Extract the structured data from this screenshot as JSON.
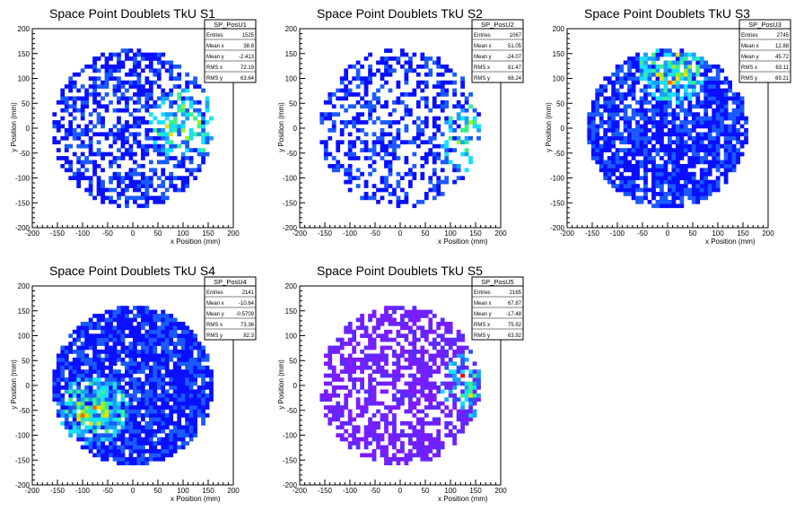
{
  "chart_data": [
    {
      "type": "heatmap",
      "title": "Space Point Doublets TkU S1",
      "xlabel": "x Position (mm)",
      "ylabel": "y Position (mm)",
      "xlim": [
        -200,
        200
      ],
      "ylim": [
        -200,
        200
      ],
      "xticks": [
        "-200",
        "-150",
        "-100",
        "-50",
        "0",
        "50",
        "100",
        "150",
        "200"
      ],
      "yticks": [
        "-200",
        "-150",
        "-100",
        "-50",
        "0",
        "50",
        "100",
        "150",
        "200"
      ],
      "stats": {
        "name": "SP_PosU1",
        "rows": [
          [
            "Entries",
            "1525"
          ],
          [
            "Mean x",
            "38.8"
          ],
          [
            "Mean y",
            "-2.413"
          ],
          [
            "RMS x",
            "72.19"
          ],
          [
            "RMS y",
            "63.64"
          ]
        ]
      },
      "hotspot": {
        "x": 100,
        "y": 10
      },
      "fill_fraction": 0.55,
      "seed": 11
    },
    {
      "type": "heatmap",
      "title": "Space Point Doublets TkU S2",
      "xlabel": "x Position (mm)",
      "ylabel": "y Position (mm)",
      "xlim": [
        -200,
        200
      ],
      "ylim": [
        -200,
        200
      ],
      "xticks": [
        "-200",
        "-150",
        "-100",
        "-50",
        "0",
        "50",
        "100",
        "150",
        "200"
      ],
      "yticks": [
        "-200",
        "-150",
        "-100",
        "-50",
        "0",
        "50",
        "100",
        "150",
        "200"
      ],
      "stats": {
        "name": "SP_PosU2",
        "rows": [
          [
            "Entries",
            "1067"
          ],
          [
            "Mean x",
            "51.05"
          ],
          [
            "Mean y",
            "-24.07"
          ],
          [
            "RMS x",
            "81.47"
          ],
          [
            "RMS y",
            "68.24"
          ]
        ]
      },
      "hotspot": {
        "x": 150,
        "y": -20
      },
      "fill_fraction": 0.42,
      "seed": 23
    },
    {
      "type": "heatmap",
      "title": "Space Point Doublets TkU S3",
      "xlabel": "x Position (mm)",
      "ylabel": "y Position (mm)",
      "xlim": [
        -200,
        200
      ],
      "ylim": [
        -200,
        200
      ],
      "xticks": [
        "-200",
        "-150",
        "-100",
        "-50",
        "0",
        "50",
        "100",
        "150",
        "200"
      ],
      "yticks": [
        "-200",
        "-150",
        "-100",
        "-50",
        "0",
        "50",
        "100",
        "150",
        "200"
      ],
      "stats": {
        "name": "SP_PosU3",
        "rows": [
          [
            "Entries",
            "2745"
          ],
          [
            "Mean x",
            "12.88"
          ],
          [
            "Mean y",
            "45.72"
          ],
          [
            "RMS x",
            "63.11"
          ],
          [
            "RMS y",
            "69.21"
          ]
        ]
      },
      "hotspot": {
        "x": 10,
        "y": 120
      },
      "fill_fraction": 0.78,
      "seed": 37
    },
    {
      "type": "heatmap",
      "title": "Space Point Doublets TkU S4",
      "xlabel": "x Position (mm)",
      "ylabel": "y Position (mm)",
      "xlim": [
        -200,
        200
      ],
      "ylim": [
        -200,
        200
      ],
      "xticks": [
        "-200",
        "-150",
        "-100",
        "-50",
        "0",
        "50",
        "100",
        "150",
        "200"
      ],
      "yticks": [
        "-200",
        "-150",
        "-100",
        "-50",
        "0",
        "50",
        "100",
        "150",
        "200"
      ],
      "stats": {
        "name": "SP_PosU4",
        "rows": [
          [
            "Entries",
            "2141"
          ],
          [
            "Mean x",
            "-10.64"
          ],
          [
            "Mean y",
            "-0.5709"
          ],
          [
            "RMS x",
            "73.36"
          ],
          [
            "RMS y",
            "82.3"
          ]
        ]
      },
      "hotspot": {
        "x": -80,
        "y": -50
      },
      "fill_fraction": 0.85,
      "seed": 53
    },
    {
      "type": "heatmap",
      "title": "Space Point Doublets TkU S5",
      "xlabel": "x Position (mm)",
      "ylabel": "y Position (mm)",
      "xlim": [
        -200,
        200
      ],
      "ylim": [
        -200,
        200
      ],
      "xticks": [
        "-200",
        "-150",
        "-100",
        "-50",
        "0",
        "50",
        "100",
        "150",
        "200"
      ],
      "yticks": [
        "-200",
        "-150",
        "-100",
        "-50",
        "0",
        "50",
        "100",
        "150",
        "200"
      ],
      "stats": {
        "name": "SP_PosU5",
        "rows": [
          [
            "Entries",
            "2165"
          ],
          [
            "Mean x",
            "67.87"
          ],
          [
            "Mean y",
            "-17.48"
          ],
          [
            "RMS x",
            "75.92"
          ],
          [
            "RMS y",
            "63.92"
          ]
        ]
      },
      "hotspot": {
        "x": 150,
        "y": 0
      },
      "fill_fraction": 0.6,
      "seed": 71,
      "palette": "violet"
    }
  ],
  "colors": {
    "palette_main": [
      "#0a10ff",
      "#1a5aff",
      "#1aa0ff",
      "#17e0ff",
      "#38f08a",
      "#a0f020",
      "#f0e000",
      "#ff6000",
      "#ff0000"
    ],
    "palette_violet": [
      "#7a1cff",
      "#5a2aff",
      "#3050ff",
      "#1aa0ff",
      "#17e0ff",
      "#38f08a",
      "#f0e000",
      "#ff0000"
    ]
  }
}
